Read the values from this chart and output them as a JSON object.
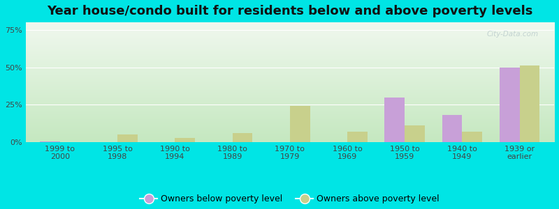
{
  "title": "Year house/condo built for residents below and above poverty levels",
  "categories": [
    "1999 to\n2000",
    "1995 to\n1998",
    "1990 to\n1994",
    "1980 to\n1989",
    "1970 to\n1979",
    "1960 to\n1969",
    "1950 to\n1959",
    "1940 to\n1949",
    "1939 or\nearlier"
  ],
  "below_poverty": [
    0.5,
    0.0,
    0.0,
    0.0,
    0.0,
    0.0,
    30.0,
    18.0,
    50.0
  ],
  "above_poverty": [
    0.0,
    5.0,
    3.0,
    6.0,
    24.0,
    7.0,
    11.0,
    7.0,
    51.0
  ],
  "below_color": "#c8a0d8",
  "above_color": "#c8d08c",
  "yticks": [
    0,
    25,
    50,
    75
  ],
  "ylim": [
    0,
    80
  ],
  "bg_color_bottom_left": "#c5e8c0",
  "bg_color_top_right": "#f0f8ee",
  "outer_bg": "#00e5e5",
  "bar_width": 0.35,
  "title_fontsize": 13,
  "tick_fontsize": 8,
  "legend_fontsize": 9
}
